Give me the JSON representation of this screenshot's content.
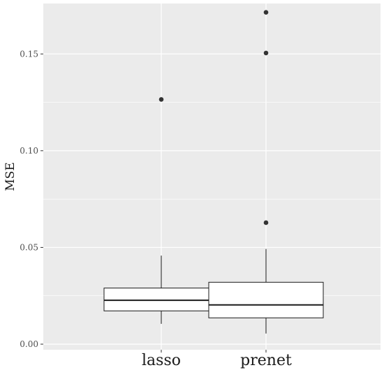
{
  "chart_data": {
    "type": "boxplot",
    "ylabel": "MSE",
    "xlabel": "",
    "ylim": [
      0.0,
      0.175
    ],
    "y_ticks": [
      0.0,
      0.05,
      0.1,
      0.15
    ],
    "y_tick_labels": [
      "0.00",
      "0.05",
      "0.10",
      "0.15"
    ],
    "y_minor_ticks": [
      0.025,
      0.075,
      0.125
    ],
    "grid": true,
    "categories": [
      "lasso",
      "prenet"
    ],
    "boxes": [
      {
        "name": "lasso",
        "whisker_low": 0.0105,
        "q1": 0.0172,
        "median": 0.0227,
        "q3": 0.029,
        "whisker_high": 0.0458,
        "outliers": [
          0.1265
        ]
      },
      {
        "name": "prenet",
        "whisker_low": 0.0055,
        "q1": 0.0136,
        "median": 0.0203,
        "q3": 0.032,
        "whisker_high": 0.0492,
        "outliers": [
          0.0628,
          0.1505,
          0.1715
        ]
      }
    ],
    "colors": {
      "panel": "#ebebeb",
      "grid": "#ffffff",
      "box_fill": "#ffffff",
      "box_stroke": "#1a1a1a",
      "point": "#333333"
    }
  }
}
